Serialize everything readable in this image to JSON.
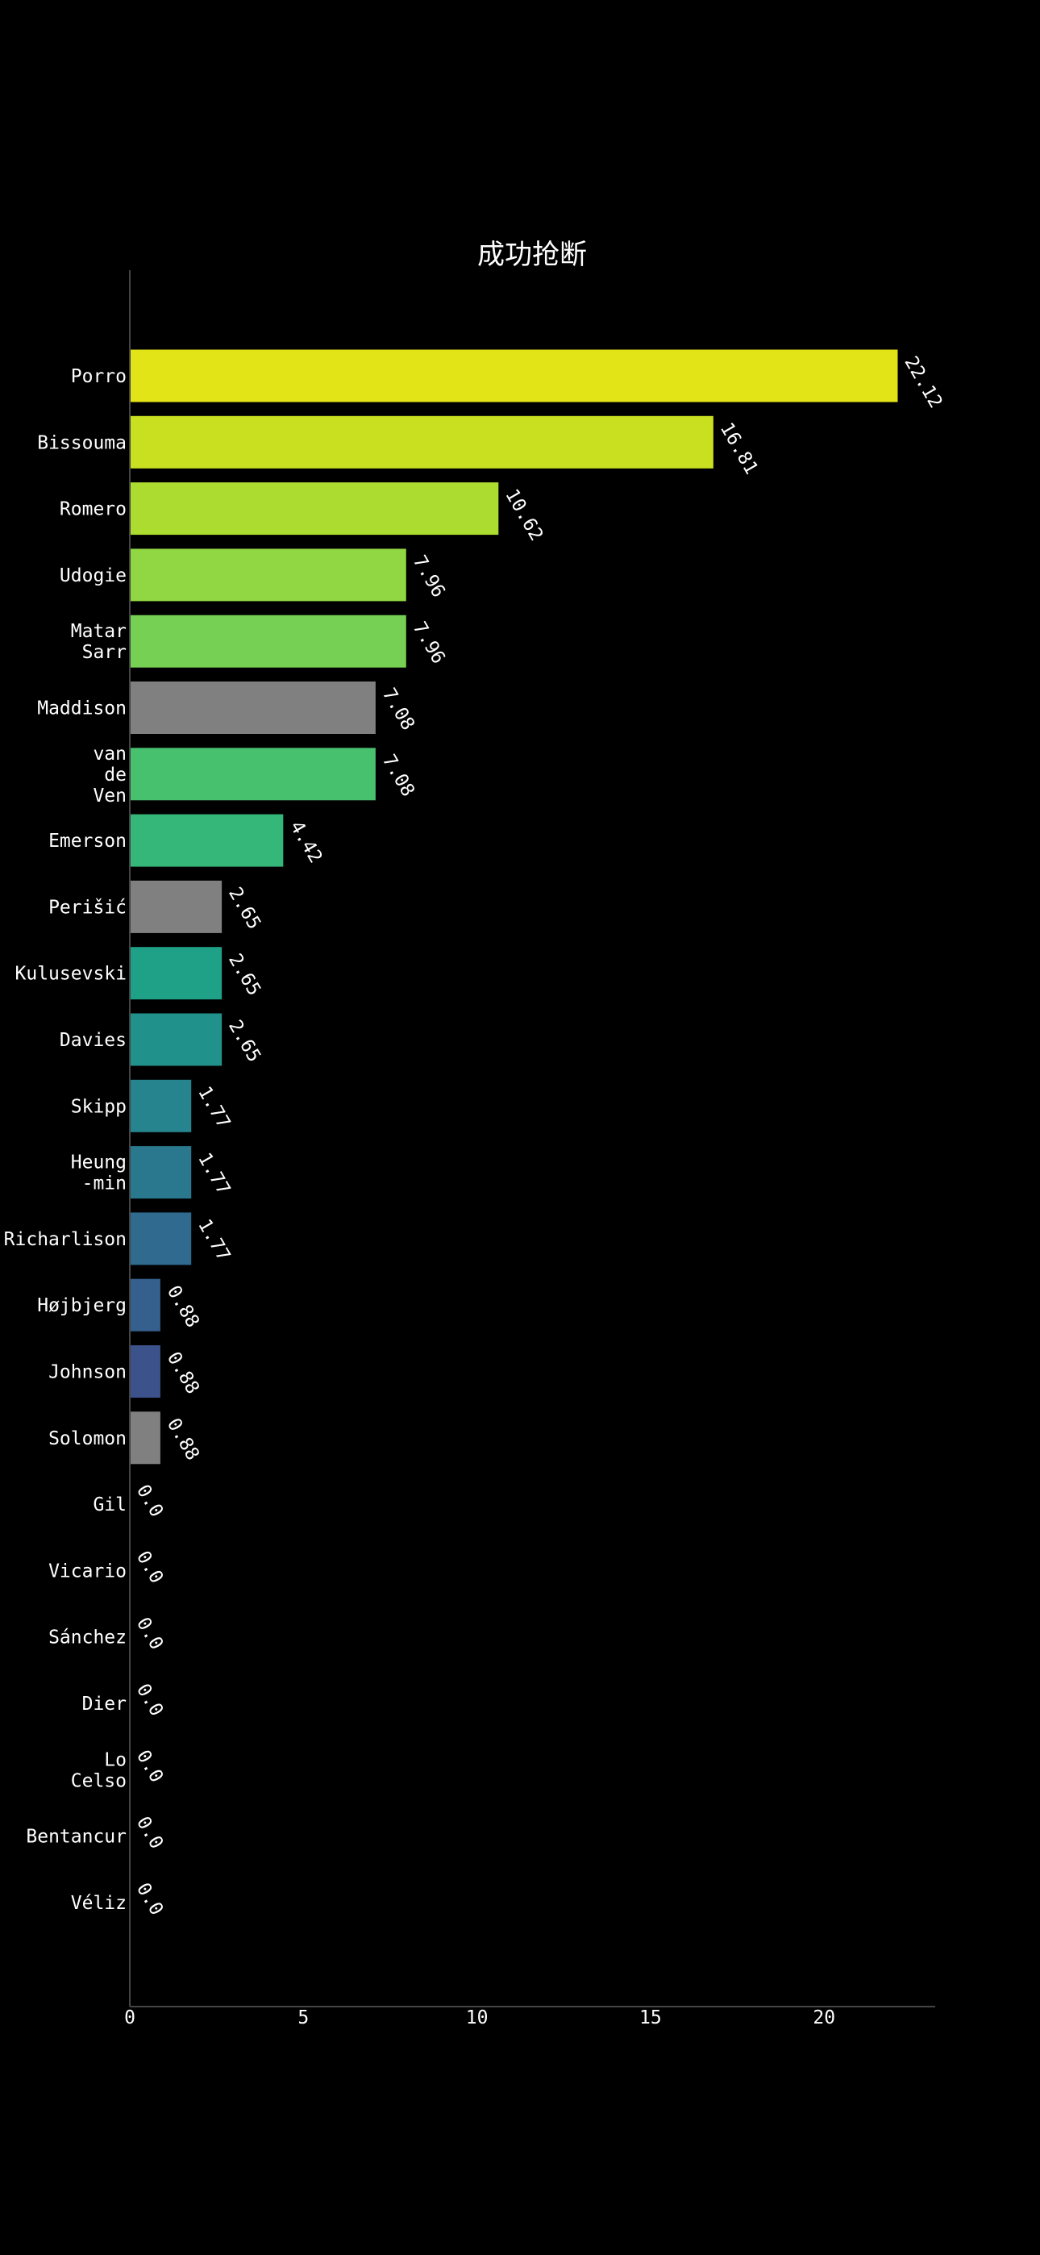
{
  "chart_data": {
    "type": "bar",
    "orientation": "horizontal",
    "title": "成功抢断",
    "xlabel": "",
    "ylabel": "",
    "xlim": [
      0,
      23.2
    ],
    "xticks": [
      0,
      5,
      10,
      15,
      20
    ],
    "grid": false,
    "categories": [
      [
        "Porro"
      ],
      [
        "Bissouma"
      ],
      [
        "Romero"
      ],
      [
        "Udogie"
      ],
      [
        "Matar",
        "Sarr"
      ],
      [
        "Maddison"
      ],
      [
        "van",
        "de",
        "Ven"
      ],
      [
        "Emerson"
      ],
      [
        "Perišić"
      ],
      [
        "Kulusevski"
      ],
      [
        "Davies"
      ],
      [
        "Skipp"
      ],
      [
        "Heung",
        "-min"
      ],
      [
        "Richarlison"
      ],
      [
        "Højbjerg"
      ],
      [
        "Johnson"
      ],
      [
        "Solomon"
      ],
      [
        "Gil"
      ],
      [
        "Vicario"
      ],
      [
        "Sánchez"
      ],
      [
        "Dier"
      ],
      [
        "Lo",
        "Celso"
      ],
      [
        "Bentancur"
      ],
      [
        "Véliz"
      ]
    ],
    "values": [
      22.12,
      16.81,
      10.62,
      7.96,
      7.96,
      7.08,
      7.08,
      4.42,
      2.65,
      2.65,
      2.65,
      1.77,
      1.77,
      1.77,
      0.88,
      0.88,
      0.88,
      0.0,
      0.0,
      0.0,
      0.0,
      0.0,
      0.0,
      0.0
    ],
    "value_labels": [
      "22.12",
      "16.81",
      "10.62",
      "7.96",
      "7.96",
      "7.08",
      "7.08",
      "4.42",
      "2.65",
      "2.65",
      "2.65",
      "1.77",
      "1.77",
      "1.77",
      "0.88",
      "0.88",
      "0.88",
      "0.0",
      "0.0",
      "0.0",
      "0.0",
      "0.0",
      "0.0",
      "0.0"
    ],
    "colors": [
      "#e3e418",
      "#c9e020",
      "#addc30",
      "#90d743",
      "#75d054",
      "#808080",
      "#48c16e",
      "#35b779",
      "#808080",
      "#1fa188",
      "#21918c",
      "#25848e",
      "#2a788e",
      "#306a8e",
      "#355f8d",
      "#3b528b",
      "#808080",
      "#440154",
      "#440154",
      "#440154",
      "#440154",
      "#440154",
      "#440154",
      "#440154"
    ]
  }
}
